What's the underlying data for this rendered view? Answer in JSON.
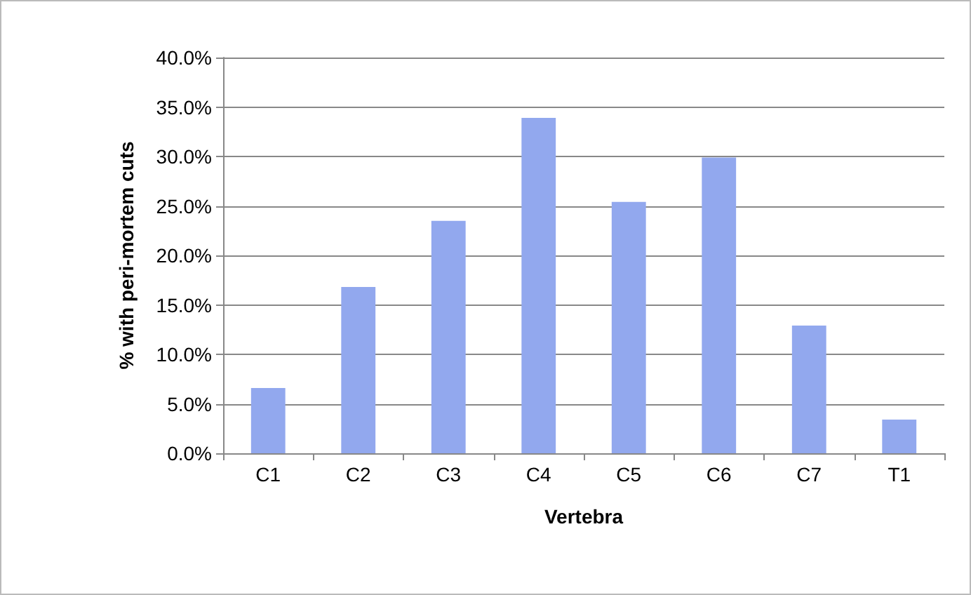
{
  "chart_data": {
    "type": "bar",
    "xlabel": "Vertebra",
    "ylabel": "% with peri-mortem cuts",
    "categories": [
      "C1",
      "C2",
      "C3",
      "C4",
      "C5",
      "C6",
      "C7",
      "T1"
    ],
    "values": [
      6.6,
      16.8,
      23.5,
      33.9,
      25.4,
      29.9,
      12.9,
      3.4
    ],
    "color": "#92a8ee",
    "ylim": [
      0,
      40
    ],
    "yticks": [
      {
        "value": 0,
        "label": "0.0%"
      },
      {
        "value": 5,
        "label": "5.0%"
      },
      {
        "value": 10,
        "label": "10.0%"
      },
      {
        "value": 15,
        "label": "15.0%"
      },
      {
        "value": 20,
        "label": "20.0%"
      },
      {
        "value": 25,
        "label": "25.0%"
      },
      {
        "value": 30,
        "label": "30.0%"
      },
      {
        "value": 35,
        "label": "35.0%"
      },
      {
        "value": 40,
        "label": "40.0%"
      }
    ],
    "grid": "y"
  }
}
